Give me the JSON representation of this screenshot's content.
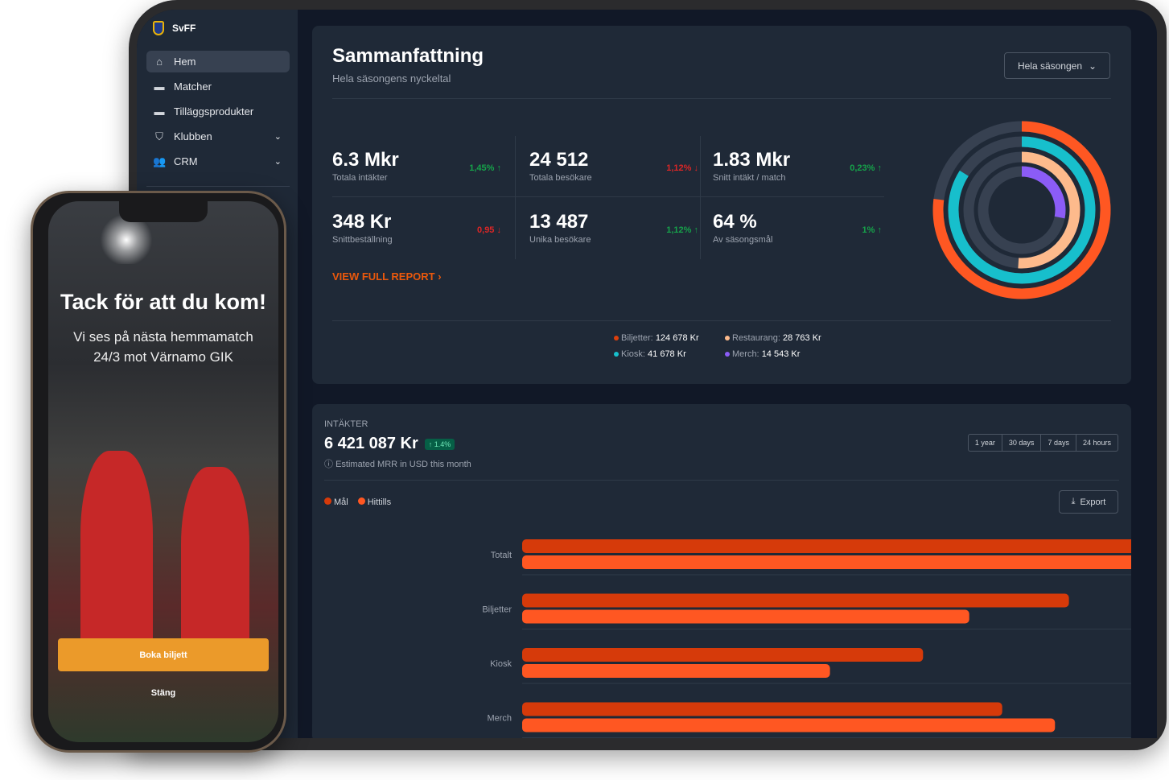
{
  "sidebar": {
    "brand": "SvFF",
    "items": [
      {
        "label": "Hem",
        "icon": "home-icon",
        "active": true
      },
      {
        "label": "Matcher",
        "icon": "ticket-icon"
      },
      {
        "label": "Tilläggsprodukter",
        "icon": "ticket-icon"
      },
      {
        "label": "Klubben",
        "icon": "shield-icon",
        "expandable": true
      },
      {
        "label": "CRM",
        "icon": "users-icon",
        "expandable": true
      }
    ]
  },
  "summary": {
    "title": "Sammanfattning",
    "subtitle": "Hela säsongens nyckeltal",
    "period": "Hela säsongen",
    "kpis": [
      {
        "value": "6.3 Mkr",
        "label": "Totala intäkter",
        "delta": "1,45%",
        "trend": "up"
      },
      {
        "value": "24 512",
        "label": "Totala besökare",
        "delta": "1,12%",
        "trend": "down"
      },
      {
        "value": "1.83 Mkr",
        "label": "Snitt intäkt / match",
        "delta": "0,23%",
        "trend": "up"
      },
      {
        "value": "348 Kr",
        "label": "Snittbeställning",
        "delta": "0,95",
        "trend": "down"
      },
      {
        "value": "13 487",
        "label": "Unika besökare",
        "delta": "1,12%",
        "trend": "up"
      },
      {
        "value": "64 %",
        "label": "Av säsongsmål",
        "delta": "1%",
        "trend": "up"
      }
    ],
    "report_link": "VIEW FULL REPORT",
    "breakdown": [
      {
        "label": "Biljetter:",
        "amount": "124 678 Kr",
        "color": "#dc3f0c",
        "ring_fraction": 0.77,
        "ring_color": "#ff5722"
      },
      {
        "label": "Restaurang:",
        "amount": "28 763 Kr",
        "color": "#fdba8c",
        "ring_fraction": 0.51,
        "ring_color": "#fdba8c"
      },
      {
        "label": "Kiosk:",
        "amount": "41 678 Kr",
        "color": "#17bfcc",
        "ring_fraction": 0.84,
        "ring_color": "#17bfcc"
      },
      {
        "label": "Merch:",
        "amount": "14 543 Kr",
        "color": "#8b5cf6",
        "ring_fraction": 0.28,
        "ring_color": "#8b5cf6"
      }
    ]
  },
  "revenue": {
    "section": "INTÄKTER",
    "total": "6 421 087 Kr",
    "badge": "↑ 1.4%",
    "note": "Estimated MRR in USD this month",
    "ranges": [
      "1 year",
      "30 days",
      "7 days",
      "24 hours"
    ],
    "export": "Export"
  },
  "chart_data": {
    "type": "bar",
    "orientation": "horizontal",
    "categories": [
      "Totalt",
      "Biljetter",
      "Kiosk",
      "Merch"
    ],
    "series": [
      {
        "name": "Mål",
        "color": "#d63a0a",
        "values": [
          100,
          74.6,
          54.7,
          65.5
        ]
      },
      {
        "name": "Hittills",
        "color": "#ff5722",
        "values": [
          97.4,
          61,
          42,
          72.7
        ]
      }
    ],
    "value_unit": "percent of largest bar",
    "grid": true,
    "legend": "top-left"
  },
  "phone": {
    "title": "Tack för att du kom!",
    "line1": "Vi ses på nästa hemmamatch",
    "line2": "24/3 mot Värnamo GIK",
    "book": "Boka biljett",
    "close": "Stäng"
  }
}
